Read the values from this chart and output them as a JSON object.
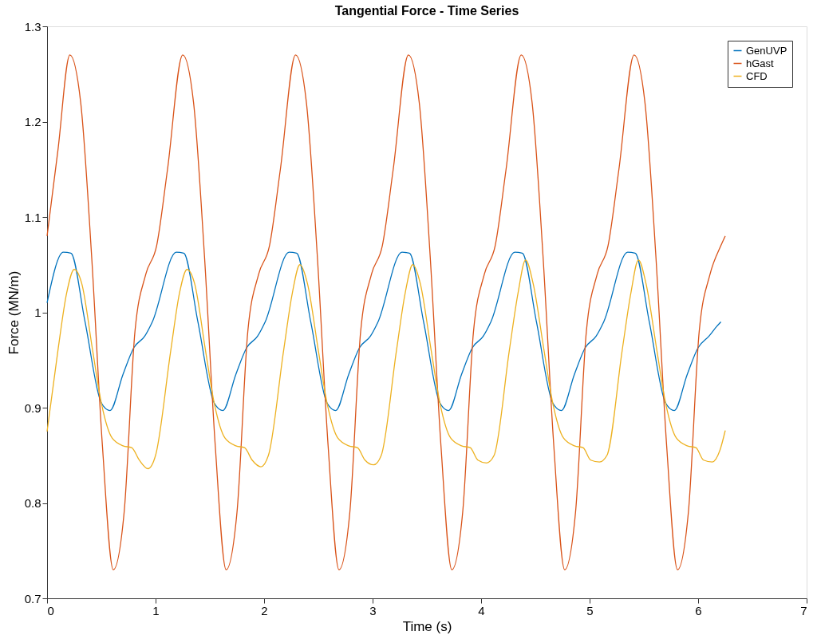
{
  "chart_data": {
    "type": "line",
    "title": "Tangential Force - Time Series",
    "xlabel": "Time (s)",
    "ylabel": "Force (MN/m)",
    "xlim": [
      0,
      7
    ],
    "xticks": [
      0,
      1,
      2,
      3,
      4,
      5,
      6,
      7
    ],
    "ylim": [
      0.7,
      1.3
    ],
    "yticks": [
      0.7,
      0.8,
      0.9,
      1,
      1.1,
      1.2,
      1.3
    ],
    "grid": false,
    "legend": "top right",
    "line_style": "solid",
    "marker": "none",
    "series": [
      {
        "name": "GenUVP",
        "color": "#0072bd",
        "x": [
          0,
          0.15,
          0.22,
          0.35,
          0.5,
          0.58,
          0.7,
          0.8,
          0.9,
          0.97,
          1.19,
          1.26,
          1.39,
          1.54,
          1.62,
          1.74,
          1.84,
          1.94,
          2.01,
          2.23,
          2.3,
          2.43,
          2.58,
          2.66,
          2.78,
          2.88,
          2.98,
          3.05,
          3.27,
          3.34,
          3.47,
          3.62,
          3.7,
          3.82,
          3.92,
          4.02,
          4.09,
          4.31,
          4.38,
          4.51,
          4.66,
          4.74,
          4.86,
          4.96,
          5.06,
          5.13,
          5.35,
          5.42,
          5.55,
          5.7,
          5.78,
          5.9,
          6.0,
          6.1,
          6.17,
          6.21
        ],
        "values": [
          1.01,
          1.063,
          1.062,
          0.99,
          0.905,
          0.897,
          0.935,
          0.963,
          0.975,
          0.99,
          1.063,
          1.062,
          0.99,
          0.905,
          0.897,
          0.935,
          0.963,
          0.975,
          0.99,
          1.063,
          1.062,
          0.99,
          0.905,
          0.897,
          0.935,
          0.963,
          0.975,
          0.99,
          1.063,
          1.062,
          0.99,
          0.905,
          0.897,
          0.935,
          0.963,
          0.975,
          0.99,
          1.063,
          1.062,
          0.99,
          0.905,
          0.897,
          0.935,
          0.963,
          0.975,
          0.99,
          1.063,
          1.062,
          0.99,
          0.905,
          0.897,
          0.935,
          0.963,
          0.975,
          0.985,
          0.99
        ]
      },
      {
        "name": "hGast",
        "color": "#d95319",
        "x": [
          0,
          0.1,
          0.21,
          0.31,
          0.41,
          0.51,
          0.61,
          0.71,
          0.81,
          0.91,
          1.01,
          1.11,
          1.25,
          1.35,
          1.45,
          1.55,
          1.65,
          1.75,
          1.85,
          1.95,
          2.05,
          2.15,
          2.29,
          2.39,
          2.49,
          2.59,
          2.69,
          2.79,
          2.89,
          2.99,
          3.09,
          3.19,
          3.33,
          3.43,
          3.53,
          3.63,
          3.73,
          3.83,
          3.93,
          4.03,
          4.13,
          4.23,
          4.37,
          4.47,
          4.57,
          4.67,
          4.77,
          4.87,
          4.97,
          5.07,
          5.17,
          5.27,
          5.41,
          5.51,
          5.61,
          5.71,
          5.81,
          5.91,
          6.01,
          6.11,
          6.21,
          6.25
        ],
        "values": [
          1.08,
          1.17,
          1.27,
          1.22,
          1.06,
          0.86,
          0.73,
          0.79,
          0.98,
          1.04,
          1.07,
          1.15,
          1.27,
          1.22,
          1.06,
          0.86,
          0.73,
          0.79,
          0.98,
          1.04,
          1.07,
          1.15,
          1.27,
          1.22,
          1.06,
          0.86,
          0.73,
          0.79,
          0.98,
          1.04,
          1.07,
          1.15,
          1.27,
          1.22,
          1.06,
          0.86,
          0.73,
          0.79,
          0.98,
          1.04,
          1.07,
          1.15,
          1.27,
          1.22,
          1.06,
          0.86,
          0.73,
          0.79,
          0.98,
          1.04,
          1.07,
          1.15,
          1.27,
          1.22,
          1.06,
          0.86,
          0.73,
          0.79,
          0.98,
          1.04,
          1.07,
          1.08
        ]
      },
      {
        "name": "CFD",
        "color": "#edb120",
        "x": [
          0,
          0.1,
          0.18,
          0.25,
          0.32,
          0.42,
          0.5,
          0.6,
          0.7,
          0.78,
          0.85,
          0.93,
          1.0,
          1.14,
          1.22,
          1.29,
          1.36,
          1.46,
          1.54,
          1.64,
          1.74,
          1.82,
          1.89,
          1.97,
          2.04,
          2.18,
          2.26,
          2.33,
          2.4,
          2.5,
          2.58,
          2.68,
          2.78,
          2.86,
          2.93,
          3.01,
          3.08,
          3.22,
          3.3,
          3.37,
          3.44,
          3.54,
          3.62,
          3.72,
          3.82,
          3.9,
          3.97,
          4.05,
          4.12,
          4.26,
          4.34,
          4.41,
          4.48,
          4.58,
          4.66,
          4.76,
          4.86,
          4.94,
          5.01,
          5.09,
          5.16,
          5.3,
          5.38,
          5.45,
          5.52,
          5.62,
          5.7,
          5.8,
          5.9,
          5.98,
          6.05,
          6.13,
          6.2,
          6.25
        ],
        "values": [
          0.875,
          0.96,
          1.02,
          1.045,
          1.03,
          0.96,
          0.905,
          0.868,
          0.86,
          0.858,
          0.845,
          0.836,
          0.85,
          0.96,
          1.02,
          1.045,
          1.03,
          0.96,
          0.905,
          0.868,
          0.86,
          0.858,
          0.845,
          0.838,
          0.85,
          0.96,
          1.02,
          1.05,
          1.03,
          0.96,
          0.905,
          0.868,
          0.86,
          0.858,
          0.845,
          0.84,
          0.85,
          0.96,
          1.02,
          1.05,
          1.03,
          0.96,
          0.905,
          0.868,
          0.86,
          0.858,
          0.845,
          0.842,
          0.85,
          0.96,
          1.02,
          1.055,
          1.03,
          0.96,
          0.905,
          0.868,
          0.86,
          0.858,
          0.845,
          0.843,
          0.85,
          0.96,
          1.02,
          1.055,
          1.03,
          0.96,
          0.905,
          0.868,
          0.86,
          0.858,
          0.845,
          0.843,
          0.855,
          0.876
        ]
      }
    ]
  }
}
